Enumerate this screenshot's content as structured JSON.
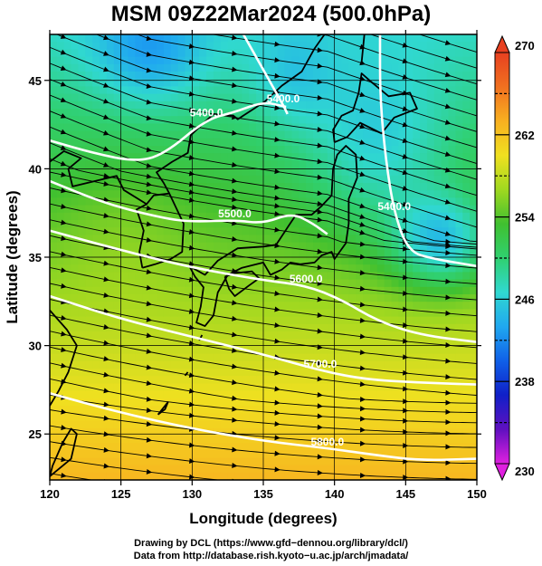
{
  "chart_data": {
    "type": "heatmap",
    "title": "MSM 09Z22Mar2024 (500.0hPa)",
    "xlabel": "Longitude (degrees)",
    "ylabel": "Latitude  (degrees)",
    "xlim": [
      120,
      150
    ],
    "ylim": [
      22.4,
      47.6
    ],
    "x_ticks": [
      120,
      125,
      130,
      135,
      140,
      145,
      150
    ],
    "y_ticks": [
      25,
      30,
      35,
      40,
      45
    ],
    "grid": true,
    "colorbar": {
      "min": 230,
      "max": 270,
      "ticks": [
        230,
        238,
        246,
        254,
        262,
        270
      ],
      "minor_ticks": [
        234,
        242,
        250,
        258,
        266
      ],
      "colors": [
        "#e020e0",
        "#6010c0",
        "#1020c8",
        "#1060e8",
        "#20a8f0",
        "#30d8d0",
        "#30d070",
        "#40c030",
        "#a0d820",
        "#f0e020",
        "#f8b020",
        "#f07020",
        "#e84020"
      ]
    },
    "contours": [
      {
        "label": "5400.0",
        "points": [
          [
            120,
            41.6
          ],
          [
            123,
            40.9
          ],
          [
            126,
            40.4
          ],
          [
            128,
            40.8
          ],
          [
            131,
            42.8
          ],
          [
            133,
            43.2
          ],
          [
            135,
            43.8
          ],
          [
            136.6,
            43.5
          ]
        ]
      },
      {
        "label": "5400.0",
        "points": [
          [
            133.6,
            47.6
          ],
          [
            135,
            45.6
          ],
          [
            136.4,
            43.6
          ],
          [
            136.7,
            43.1
          ]
        ]
      },
      {
        "label": "5400.0",
        "points": [
          [
            143.2,
            47.6
          ],
          [
            143.2,
            44.0
          ],
          [
            143.6,
            40.5
          ],
          [
            144.2,
            37.5
          ],
          [
            145.2,
            35.3
          ],
          [
            147,
            34.9
          ],
          [
            150,
            34.5
          ]
        ]
      },
      {
        "label": "5500.0",
        "points": [
          [
            120,
            39.3
          ],
          [
            124,
            38.0
          ],
          [
            128,
            37.2
          ],
          [
            130,
            37.0
          ],
          [
            133,
            37.1
          ],
          [
            135,
            36.9
          ],
          [
            137,
            37.5
          ],
          [
            138.5,
            36.9
          ],
          [
            139.5,
            36.3
          ]
        ]
      },
      {
        "label": "5600.0",
        "points": [
          [
            120,
            36.5
          ],
          [
            125,
            35.4
          ],
          [
            130,
            34.4
          ],
          [
            135,
            33.7
          ],
          [
            138,
            33.4
          ],
          [
            140.5,
            32.6
          ],
          [
            143,
            31.4
          ],
          [
            146,
            30.6
          ],
          [
            150,
            30.2
          ]
        ]
      },
      {
        "label": "5700.0",
        "points": [
          [
            120,
            32.8
          ],
          [
            125,
            31.5
          ],
          [
            130,
            30.5
          ],
          [
            135,
            29.5
          ],
          [
            139,
            28.6
          ],
          [
            142,
            28.1
          ],
          [
            146,
            27.9
          ],
          [
            150,
            27.8
          ]
        ]
      },
      {
        "label": "5800.0",
        "points": [
          [
            120,
            27.3
          ],
          [
            125,
            26.2
          ],
          [
            130,
            25.3
          ],
          [
            135,
            24.6
          ],
          [
            139.5,
            24.2
          ],
          [
            143,
            23.8
          ],
          [
            146,
            23.5
          ],
          [
            150,
            23.6
          ]
        ]
      }
    ],
    "streamline_note": "",
    "coastlines": [
      {
        "name": "",
        "points": [
          [
            129.8,
            34.5
          ],
          [
            130.2,
            33.9
          ],
          [
            130.8,
            33.3
          ],
          [
            130.6,
            32.2
          ],
          [
            130.3,
            31.3
          ],
          [
            130.9,
            31.1
          ],
          [
            131.5,
            31.7
          ],
          [
            131.8,
            33.0
          ],
          [
            132.5,
            34.0
          ],
          [
            133.5,
            34.4
          ],
          [
            135.0,
            34.7
          ],
          [
            135.5,
            34.0
          ],
          [
            136.3,
            34.3
          ],
          [
            136.9,
            34.7
          ],
          [
            137.6,
            34.6
          ],
          [
            138.6,
            34.7
          ],
          [
            139.1,
            35.1
          ],
          [
            139.8,
            35.3
          ],
          [
            140.0,
            34.9
          ],
          [
            140.8,
            35.8
          ],
          [
            141.0,
            36.9
          ],
          [
            141.0,
            38.3
          ],
          [
            141.6,
            39.5
          ],
          [
            141.5,
            40.8
          ],
          [
            140.8,
            41.3
          ],
          [
            140.2,
            40.8
          ],
          [
            139.9,
            40.0
          ],
          [
            139.8,
            38.5
          ],
          [
            139.1,
            37.9
          ],
          [
            138.4,
            37.4
          ],
          [
            137.3,
            37.4
          ],
          [
            136.8,
            36.8
          ],
          [
            135.9,
            35.7
          ],
          [
            135.0,
            35.6
          ],
          [
            133.2,
            35.5
          ],
          [
            131.8,
            34.8
          ],
          [
            130.9,
            34.0
          ],
          [
            129.8,
            34.5
          ]
        ]
      },
      {
        "name": "",
        "points": [
          [
            132.3,
            33.9
          ],
          [
            132.6,
            33.2
          ],
          [
            133.0,
            32.8
          ],
          [
            134.0,
            33.4
          ],
          [
            134.7,
            33.8
          ],
          [
            134.2,
            34.2
          ],
          [
            133.0,
            34.1
          ],
          [
            132.3,
            33.9
          ]
        ]
      },
      {
        "name": "",
        "points": [
          [
            140.0,
            41.5
          ],
          [
            139.9,
            42.2
          ],
          [
            140.5,
            43.0
          ],
          [
            141.3,
            43.3
          ],
          [
            141.7,
            44.3
          ],
          [
            141.9,
            45.4
          ],
          [
            142.6,
            44.9
          ],
          [
            143.8,
            44.1
          ],
          [
            145.3,
            44.3
          ],
          [
            145.8,
            43.4
          ],
          [
            144.2,
            42.9
          ],
          [
            143.3,
            42.0
          ],
          [
            141.8,
            42.6
          ],
          [
            140.9,
            41.8
          ],
          [
            140.0,
            41.5
          ]
        ]
      },
      {
        "name": "",
        "points": [
          [
            141.9,
            46.0
          ],
          [
            142.1,
            47.6
          ]
        ]
      },
      {
        "name": "",
        "points": [
          [
            120,
            22.6
          ],
          [
            121.5,
            23.6
          ],
          [
            121.9,
            25.0
          ],
          [
            121.5,
            25.3
          ],
          [
            120.9,
            24.5
          ],
          [
            120.2,
            23.2
          ],
          [
            120,
            22.6
          ]
        ]
      },
      {
        "name": "",
        "points": [
          [
            126.5,
            34.4
          ],
          [
            126.3,
            35.3
          ],
          [
            126.6,
            36.5
          ],
          [
            126.1,
            37.7
          ],
          [
            126.8,
            38.0
          ],
          [
            125.2,
            38.8
          ],
          [
            124.7,
            39.6
          ],
          [
            121.6,
            39.0
          ],
          [
            121.3,
            40.0
          ],
          [
            122.2,
            40.6
          ],
          [
            121.0,
            41.0
          ],
          [
            120,
            40.4
          ]
        ]
      },
      {
        "name": "",
        "points": [
          [
            126.8,
            38.0
          ],
          [
            127.3,
            38.5
          ],
          [
            128.4,
            38.6
          ],
          [
            129.4,
            36.9
          ],
          [
            129.3,
            35.3
          ],
          [
            128.5,
            34.9
          ],
          [
            127.4,
            34.6
          ],
          [
            126.5,
            34.4
          ]
        ]
      },
      {
        "name": "",
        "points": [
          [
            128.4,
            38.6
          ],
          [
            128.0,
            39.2
          ],
          [
            127.5,
            39.8
          ],
          [
            128.6,
            40.4
          ],
          [
            129.7,
            40.9
          ],
          [
            129.9,
            41.9
          ],
          [
            130.7,
            42.5
          ],
          [
            131.5,
            43.1
          ],
          [
            132.9,
            43.0
          ],
          [
            133.2,
            42.8
          ],
          [
            135.1,
            43.8
          ],
          [
            136.3,
            44.7
          ],
          [
            137.7,
            45.5
          ],
          [
            138.6,
            46.8
          ],
          [
            139.3,
            47.6
          ]
        ]
      },
      {
        "name": "",
        "points": [
          [
            120,
            32.0
          ],
          [
            121.2,
            30.9
          ],
          [
            121.9,
            30.0
          ],
          [
            121.3,
            28.5
          ],
          [
            120.6,
            27.4
          ],
          [
            120,
            26.6
          ]
        ]
      },
      {
        "name": "",
        "points": [
          [
            127.6,
            26.1
          ],
          [
            128.3,
            26.8
          ],
          [
            128.1,
            26.4
          ],
          [
            127.6,
            26.1
          ]
        ]
      },
      {
        "name": "",
        "points": [
          [
            129.5,
            28.3
          ],
          [
            129.7,
            28.5
          ]
        ]
      },
      {
        "name": "",
        "points": [
          [
            130.5,
            30.3
          ],
          [
            130.7,
            30.6
          ]
        ]
      }
    ]
  },
  "credits": [
    "Drawing by DCL (https://www.gfd−dennou.org/library/dcl/)",
    "Data from http://database.rish.kyoto−u.ac.jp/arch/jmadata/"
  ]
}
